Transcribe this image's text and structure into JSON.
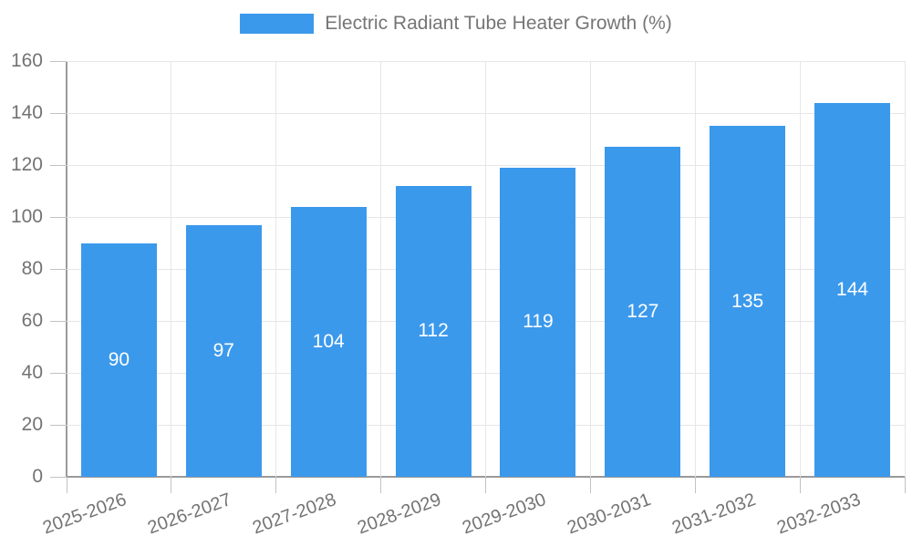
{
  "chart_data": {
    "type": "bar",
    "title": "Electric Radiant Tube Heater Growth (%)",
    "legend": {
      "label": "Electric Radiant Tube Heater Growth (%)",
      "position": "top"
    },
    "categories": [
      "2025-2026",
      "2026-2027",
      "2027-2028",
      "2028-2029",
      "2029-2030",
      "2030-2031",
      "2031-2032",
      "2032-2033"
    ],
    "values": [
      90,
      97,
      104,
      112,
      119,
      127,
      135,
      144
    ],
    "xlabel": "",
    "ylabel": "",
    "ylim": [
      0,
      160
    ],
    "ytick_step": 20,
    "yticks": [
      0,
      20,
      40,
      60,
      80,
      100,
      120,
      140,
      160
    ],
    "grid": true,
    "value_labels_inside_bars": true,
    "colors": {
      "bar": "#3b99ec",
      "value_label": "#ffffff",
      "axis": "#9a9a9a",
      "gridline": "#e6e6e6",
      "tick": "#c2c2c2",
      "text": "#757575",
      "background": "#ffffff"
    }
  }
}
